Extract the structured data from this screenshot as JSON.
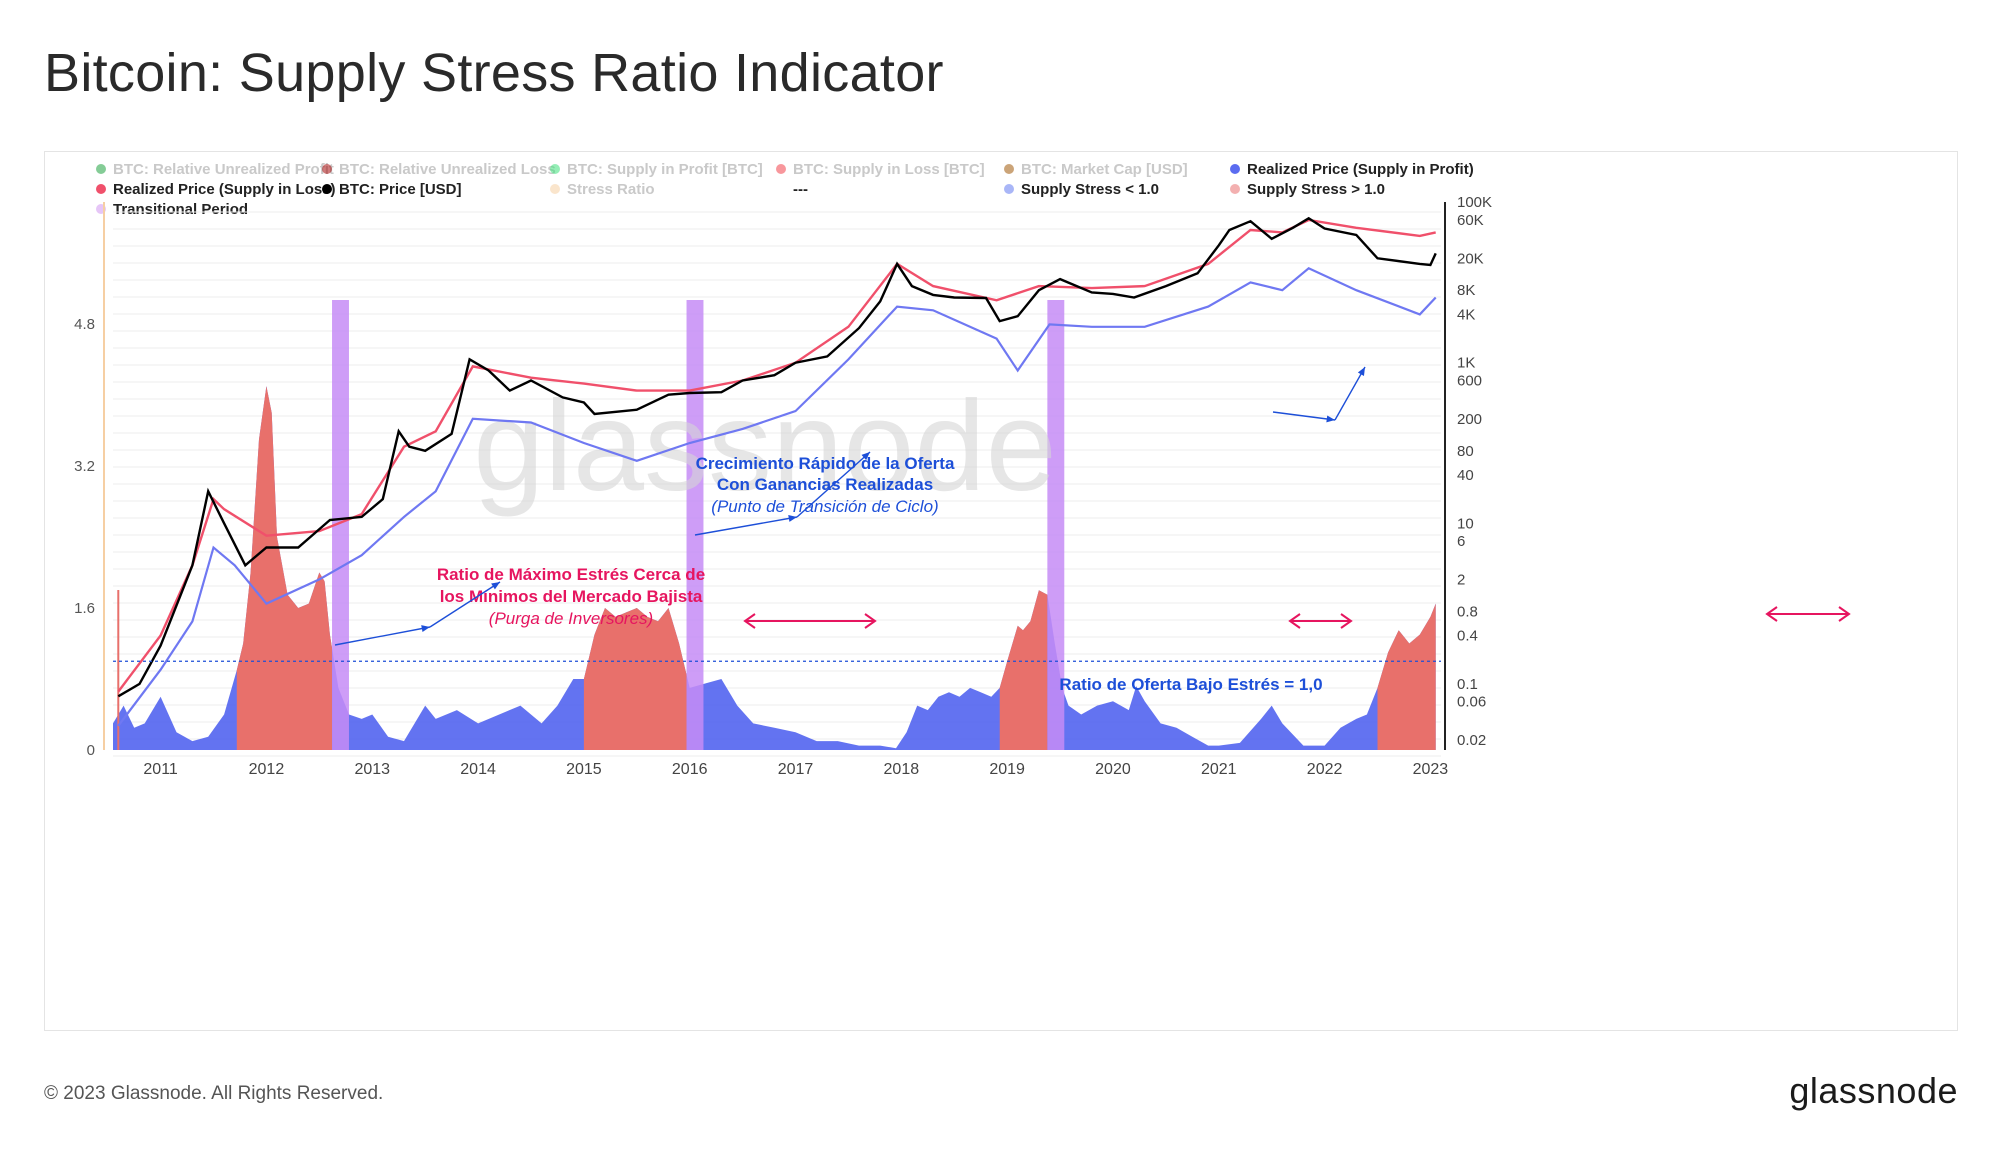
{
  "page": {
    "title": "Bitcoin: Supply Stress Ratio Indicator",
    "copyright": "© 2023 Glassnode. All Rights Reserved.",
    "brand": "glassnode",
    "watermark": "glassnode"
  },
  "colors": {
    "blue_area": "#5b6cf0",
    "red_area": "#e8706b",
    "purple": "#c58cf6",
    "realized_loss_line": "#f0506b",
    "price_line": "#000000",
    "realized_profit_line": "#6f78f2",
    "annotation_blue": "#1d4fd8",
    "annotation_pink": "#e6155f"
  },
  "legend": [
    {
      "label": "BTC: Relative Unrealized Profit",
      "color": "#1fa33f",
      "active": false
    },
    {
      "label": "BTC: Relative Unrealized Loss",
      "color": "#a80f0f",
      "active": false
    },
    {
      "label": "BTC: Supply in Profit [BTC]",
      "color": "#3ee07a",
      "active": false
    },
    {
      "label": "BTC: Supply in Loss [BTC]",
      "color": "#f2424a",
      "active": false
    },
    {
      "label": "BTC: Market Cap [USD]",
      "color": "#a15a0a",
      "active": false
    },
    {
      "label": "Realized Price (Supply in Profit)",
      "color": "#5b6cf0",
      "active": true
    },
    {
      "label": "Realized Price (Supply in Loss)",
      "color": "#f0506b",
      "active": true
    },
    {
      "label": "BTC: Price [USD]",
      "color": "#000000",
      "active": true
    },
    {
      "label": "Stress Ratio",
      "color": "#f6cfa3",
      "active": false
    },
    {
      "label": "---",
      "color": "",
      "active": true
    },
    {
      "label": "Supply Stress < 1.0",
      "color": "#a9b6f7",
      "active": true
    },
    {
      "label": "Supply Stress > 1.0",
      "color": "#f3b0b0",
      "active": true
    },
    {
      "label": "Transitional Period",
      "color": "#e6c6f7",
      "active": true
    }
  ],
  "annotations": {
    "rapid_growth_line1": "Crecimiento Rápido de la Oferta",
    "rapid_growth_line2": "Con Ganancias Realizadas",
    "rapid_growth_sub": "(Punto de Transición de Ciclo)",
    "max_stress_line1": "Ratio de Máximo Estrés Cerca de",
    "max_stress_line2": "los Mínimos del Mercado Bajista",
    "max_stress_sub": "(Purga de Inversores)",
    "low_stress_label": "Ratio de Oferta Bajo Estrés = 1,0"
  },
  "chart_data": {
    "type": "area",
    "title": "Bitcoin: Supply Stress Ratio Indicator",
    "x_range": [
      2010.55,
      2023.1
    ],
    "x_ticks": [
      "2011",
      "2012",
      "2013",
      "2014",
      "2015",
      "2016",
      "2017",
      "2018",
      "2019",
      "2020",
      "2021",
      "2022",
      "2023"
    ],
    "y_left": {
      "range": [
        0,
        6.4
      ],
      "ticks": [
        "0",
        "1.6",
        "3.2",
        "4.8"
      ]
    },
    "y_right": {
      "scale": "log",
      "range": [
        0.015,
        200000
      ],
      "ticks": [
        "0.02",
        "0.06",
        "0.1",
        "0.4",
        "0.8",
        "2",
        "6",
        "10",
        "40",
        "80",
        "200",
        "600",
        "1K",
        "4K",
        "8K",
        "20K",
        "60K",
        "100K"
      ]
    },
    "threshold": 1.0,
    "stress_ratio": {
      "t": [
        2010.55,
        2010.65,
        2010.75,
        2010.85,
        2011.0,
        2011.15,
        2011.3,
        2011.45,
        2011.6,
        2011.72,
        2011.78,
        2011.85,
        2011.93,
        2012.0,
        2012.05,
        2012.1,
        2012.2,
        2012.3,
        2012.4,
        2012.5,
        2012.55,
        2012.6,
        2012.68,
        2012.78,
        2012.9,
        2013.0,
        2013.15,
        2013.3,
        2013.5,
        2013.6,
        2013.8,
        2014.0,
        2014.2,
        2014.4,
        2014.6,
        2014.75,
        2014.9,
        2015.0,
        2015.1,
        2015.2,
        2015.3,
        2015.4,
        2015.5,
        2015.6,
        2015.7,
        2015.8,
        2015.9,
        2016.0,
        2016.15,
        2016.3,
        2016.45,
        2016.6,
        2016.8,
        2017.0,
        2017.2,
        2017.4,
        2017.6,
        2017.8,
        2017.95,
        2018.05,
        2018.15,
        2018.25,
        2018.35,
        2018.45,
        2018.55,
        2018.65,
        2018.75,
        2018.85,
        2018.93,
        2019.0,
        2019.1,
        2019.15,
        2019.22,
        2019.3,
        2019.38,
        2019.45,
        2019.52,
        2019.58,
        2019.7,
        2019.85,
        2020.0,
        2020.15,
        2020.22,
        2020.3,
        2020.45,
        2020.6,
        2020.75,
        2020.9,
        2021.0,
        2021.2,
        2021.4,
        2021.5,
        2021.6,
        2021.8,
        2022.0,
        2022.15,
        2022.3,
        2022.4,
        2022.5,
        2022.6,
        2022.7,
        2022.8,
        2022.9,
        2023.0,
        2023.05
      ],
      "v": [
        0.3,
        0.5,
        0.25,
        0.3,
        0.6,
        0.2,
        0.1,
        0.15,
        0.4,
        0.9,
        1.2,
        2.0,
        3.5,
        4.1,
        3.8,
        2.4,
        1.75,
        1.6,
        1.65,
        2.0,
        1.9,
        1.3,
        0.7,
        0.4,
        0.35,
        0.4,
        0.15,
        0.1,
        0.5,
        0.35,
        0.45,
        0.3,
        0.4,
        0.5,
        0.3,
        0.5,
        0.8,
        0.8,
        1.3,
        1.6,
        1.5,
        1.55,
        1.6,
        1.5,
        1.45,
        1.6,
        1.2,
        0.7,
        0.75,
        0.8,
        0.5,
        0.3,
        0.25,
        0.2,
        0.1,
        0.1,
        0.05,
        0.05,
        0.02,
        0.2,
        0.5,
        0.45,
        0.6,
        0.65,
        0.6,
        0.7,
        0.65,
        0.6,
        0.7,
        1.0,
        1.4,
        1.35,
        1.45,
        1.8,
        1.75,
        1.2,
        0.7,
        0.5,
        0.4,
        0.5,
        0.55,
        0.45,
        0.72,
        0.55,
        0.3,
        0.25,
        0.15,
        0.05,
        0.05,
        0.08,
        0.35,
        0.5,
        0.3,
        0.05,
        0.05,
        0.25,
        0.35,
        0.4,
        0.7,
        1.1,
        1.35,
        1.2,
        1.3,
        1.5,
        1.65
      ]
    },
    "stress_periods_gt_1": [
      [
        2011.72,
        2012.62
      ],
      [
        2015.0,
        2015.97
      ],
      [
        2018.93,
        2019.38
      ],
      [
        2022.5,
        2023.05
      ]
    ],
    "transitional_periods": [
      [
        2012.62,
        2012.78
      ],
      [
        2015.97,
        2016.13
      ],
      [
        2019.38,
        2019.54
      ]
    ],
    "btc_price_usd": {
      "t": [
        2010.6,
        2010.8,
        2011.0,
        2011.3,
        2011.45,
        2011.6,
        2011.8,
        2012.0,
        2012.3,
        2012.6,
        2012.9,
        2013.1,
        2013.25,
        2013.35,
        2013.5,
        2013.75,
        2013.92,
        2014.1,
        2014.3,
        2014.5,
        2014.8,
        2015.0,
        2015.1,
        2015.5,
        2015.8,
        2016.0,
        2016.3,
        2016.5,
        2016.8,
        2017.0,
        2017.3,
        2017.6,
        2017.8,
        2017.96,
        2018.1,
        2018.3,
        2018.5,
        2018.8,
        2018.93,
        2019.1,
        2019.3,
        2019.5,
        2019.8,
        2020.0,
        2020.2,
        2020.5,
        2020.8,
        2021.0,
        2021.1,
        2021.3,
        2021.5,
        2021.7,
        2021.85,
        2022.0,
        2022.3,
        2022.5,
        2022.9,
        2023.0,
        2023.05
      ],
      "v": [
        0.07,
        0.1,
        0.3,
        3,
        25,
        10,
        3,
        5,
        5,
        11,
        12,
        20,
        140,
        90,
        80,
        130,
        1100,
        800,
        450,
        600,
        370,
        320,
        230,
        260,
        400,
        420,
        430,
        600,
        700,
        1000,
        1200,
        2700,
        5800,
        17000,
        9000,
        7000,
        6500,
        6400,
        3300,
        3800,
        8000,
        11000,
        7500,
        7200,
        6500,
        9000,
        13000,
        29000,
        45000,
        58000,
        35000,
        48000,
        63000,
        47000,
        39000,
        20000,
        17000,
        16500,
        23000
      ]
    },
    "realized_price_loss_usd": {
      "t": [
        2010.6,
        2011.0,
        2011.3,
        2011.5,
        2011.6,
        2012.0,
        2012.5,
        2012.9,
        2013.3,
        2013.6,
        2013.95,
        2014.5,
        2015.0,
        2015.5,
        2016.0,
        2016.5,
        2017.0,
        2017.5,
        2017.96,
        2018.3,
        2018.9,
        2019.3,
        2019.8,
        2020.3,
        2020.9,
        2021.3,
        2021.6,
        2021.85,
        2022.3,
        2022.9,
        2023.05
      ],
      "v": [
        0.08,
        0.4,
        3,
        20,
        15,
        7,
        8,
        13,
        90,
        140,
        900,
        650,
        550,
        450,
        450,
        600,
        1000,
        2800,
        17000,
        9000,
        6000,
        9000,
        8500,
        9000,
        17000,
        45000,
        42000,
        60000,
        48000,
        38000,
        42000
      ]
    },
    "realized_price_profit_usd": {
      "t": [
        2010.6,
        2011.0,
        2011.3,
        2011.5,
        2011.7,
        2012.0,
        2012.5,
        2012.9,
        2013.3,
        2013.6,
        2013.95,
        2014.5,
        2015.0,
        2015.5,
        2016.0,
        2016.5,
        2017.0,
        2017.5,
        2017.96,
        2018.3,
        2018.9,
        2019.1,
        2019.4,
        2019.8,
        2020.3,
        2020.9,
        2021.3,
        2021.6,
        2021.85,
        2022.3,
        2022.9,
        2023.05
      ],
      "v": [
        0.03,
        0.15,
        0.6,
        5,
        3,
        1,
        2,
        4,
        12,
        25,
        200,
        180,
        100,
        60,
        100,
        150,
        250,
        1100,
        5000,
        4500,
        2000,
        800,
        3000,
        2800,
        2800,
        5000,
        10000,
        8000,
        15000,
        8000,
        4000,
        6500
      ]
    }
  }
}
